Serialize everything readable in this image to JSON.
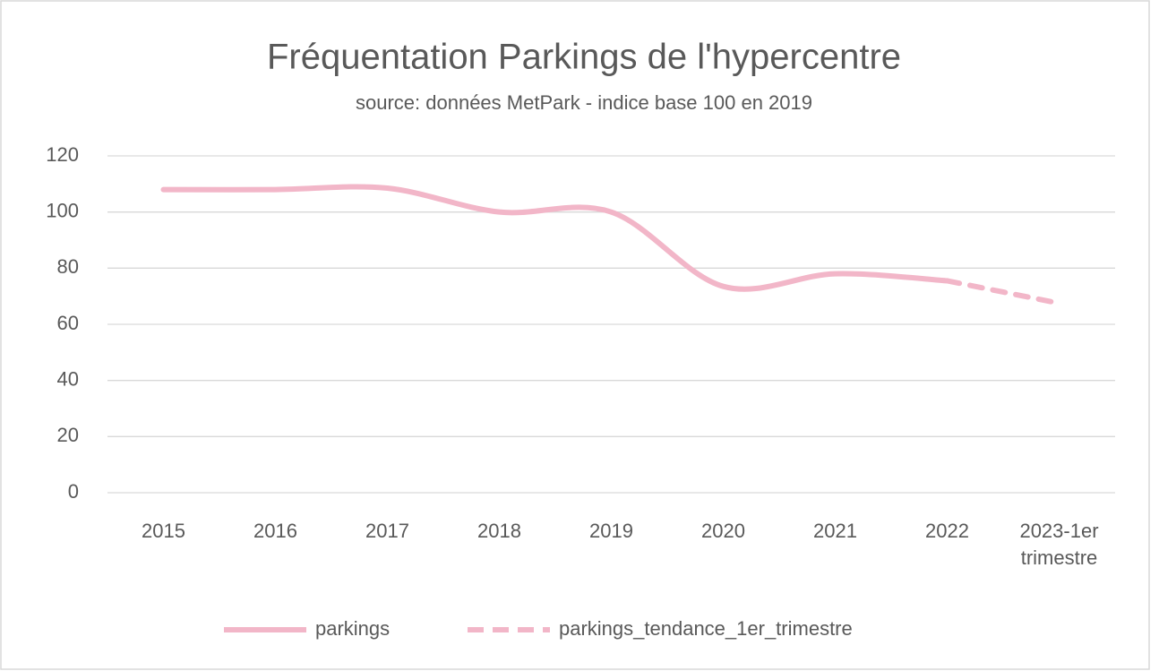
{
  "chart_data": {
    "type": "line",
    "title": "Fréquentation Parkings de l'hypercentre",
    "subtitle": "source: données MetPark - indice base 100 en 2019",
    "categories": [
      "2015",
      "2016",
      "2017",
      "2018",
      "2019",
      "2020",
      "2021",
      "2022",
      "2023-1er trimestre"
    ],
    "series": [
      {
        "name": "parkings",
        "color": "#f2b6c8",
        "dash": false,
        "values": [
          108,
          108,
          108.5,
          100,
          100,
          73.5,
          78,
          75.5,
          null
        ]
      },
      {
        "name": "parkings_tendance_1er_trimestre",
        "color": "#f2b6c8",
        "dash": true,
        "values": [
          null,
          null,
          null,
          null,
          null,
          null,
          null,
          75.5,
          67.5
        ]
      }
    ],
    "ylim": [
      0,
      120
    ],
    "yticks": [
      0,
      20,
      40,
      60,
      80,
      100,
      120
    ],
    "grid": true,
    "legend": "bottom"
  }
}
